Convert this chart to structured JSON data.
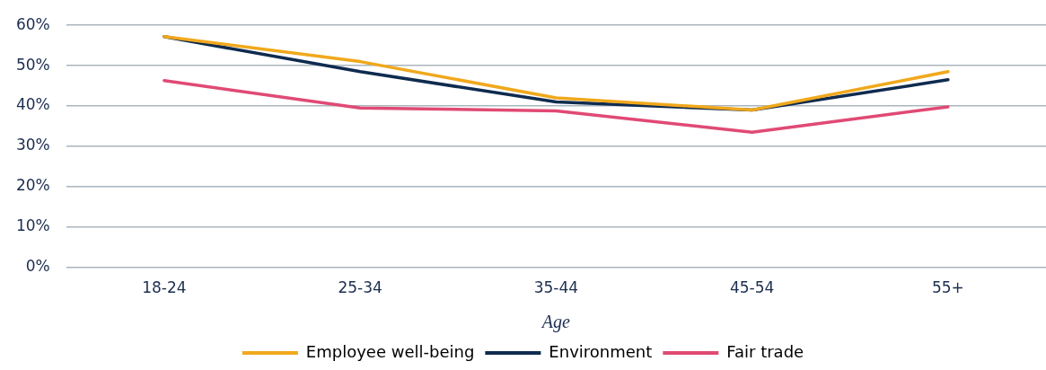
{
  "chart_data": {
    "type": "line",
    "xlabel": "Age",
    "categories": [
      "18-24",
      "25-34",
      "35-44",
      "45-54",
      "55+"
    ],
    "series": [
      {
        "name": "Employee well-being",
        "color": "#f0a81c",
        "values": [
          57.2,
          51,
          42,
          39,
          48.5
        ]
      },
      {
        "name": "Environment",
        "color": "#0f2b4f",
        "values": [
          57.2,
          48.5,
          41,
          39,
          46.5
        ]
      },
      {
        "name": "Fair trade",
        "color": "#e04a74",
        "values": [
          46.3,
          39.5,
          38.8,
          33.5,
          39.8
        ]
      }
    ],
    "ylim": [
      0,
      60
    ],
    "yticks": [
      {
        "value": 0,
        "label": "0%"
      },
      {
        "value": 10,
        "label": "10%"
      },
      {
        "value": 20,
        "label": "20%"
      },
      {
        "value": 30,
        "label": "30%"
      },
      {
        "value": 40,
        "label": "40%"
      },
      {
        "value": 50,
        "label": "50%"
      },
      {
        "value": 60,
        "label": "60%"
      }
    ],
    "grid": "y",
    "legend": "bottom",
    "marker": "none",
    "line_style": "solid"
  }
}
